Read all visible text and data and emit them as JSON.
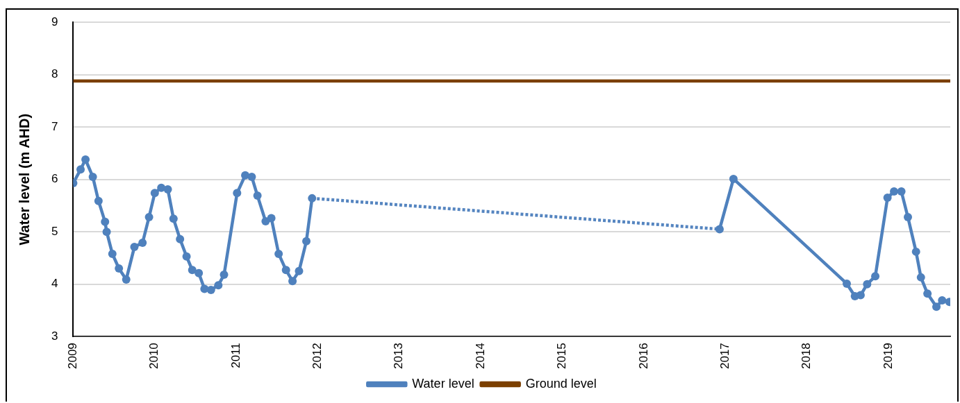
{
  "chart_data": {
    "type": "line",
    "ylabel": "Water level (m AHD)",
    "xlim": [
      2009,
      2019.76
    ],
    "xticks": [
      2009,
      2010,
      2011,
      2012,
      2013,
      2014,
      2015,
      2016,
      2017,
      2018,
      2019
    ],
    "ylim": [
      3,
      9
    ],
    "yticks": [
      3,
      4,
      5,
      6,
      7,
      8,
      9
    ],
    "grid": "y",
    "legend": "bottom",
    "series": [
      {
        "name": "Water level",
        "color": "#4f81bd",
        "marker": "circle",
        "line_style": "solid",
        "x": [
          2009.0,
          2009.09,
          2009.15,
          2009.24,
          2009.31,
          2009.39,
          2009.41,
          2009.48,
          2009.56,
          2009.65,
          2009.75,
          2009.85,
          2009.93,
          2010.0,
          2010.08,
          2010.16,
          2010.23,
          2010.31,
          2010.39,
          2010.46,
          2010.54,
          2010.61,
          2010.69,
          2010.78,
          2010.85,
          2011.01,
          2011.11,
          2011.19,
          2011.26,
          2011.36,
          2011.43,
          2011.52,
          2011.61,
          2011.69,
          2011.77,
          2011.86,
          2011.93,
          2014.4,
          2016.93,
          2017.1,
          2018.49,
          2018.59,
          2018.66,
          2018.74,
          2018.84,
          2018.99,
          2019.07,
          2019.16,
          2019.24,
          2019.34,
          2019.4,
          2019.48,
          2019.59,
          2019.66,
          2019.75
        ],
        "values": [
          5.93,
          6.19,
          6.38,
          6.05,
          5.59,
          5.19,
          5.0,
          4.58,
          4.3,
          4.09,
          4.71,
          4.79,
          5.28,
          5.74,
          5.84,
          5.81,
          5.25,
          4.86,
          4.53,
          4.27,
          4.21,
          3.91,
          3.89,
          3.98,
          4.18,
          5.74,
          6.08,
          6.05,
          5.69,
          5.2,
          5.26,
          4.58,
          4.27,
          4.06,
          4.25,
          4.82,
          5.64,
          null,
          5.05,
          6.01,
          4.01,
          3.77,
          3.79,
          4.0,
          4.15,
          5.65,
          5.77,
          5.77,
          5.28,
          4.62,
          4.13,
          3.82,
          3.57,
          3.69,
          3.66
        ]
      },
      {
        "color": "#5585c0",
        "marker": "none",
        "line_style": "dotted",
        "x": [
          2011.93,
          2016.93
        ],
        "values": [
          5.64,
          5.05
        ]
      },
      {
        "name": "Ground level",
        "color": "#7b3f00",
        "marker": "none",
        "line_style": "solid",
        "x": [
          2009,
          2019.76
        ],
        "values": [
          7.88,
          7.88
        ]
      }
    ]
  }
}
